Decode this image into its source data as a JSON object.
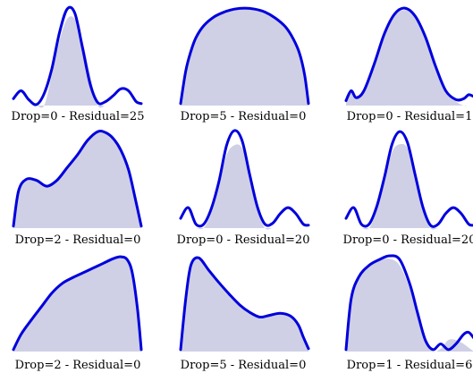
{
  "colors": {
    "curve": "#0000dd",
    "fill": "#cfd0e6"
  },
  "chart_data": [
    {
      "type": "area",
      "caption": "Drop=0 - Residual=25",
      "x": [
        0,
        0.06,
        0.12,
        0.18,
        0.24,
        0.3,
        0.36,
        0.42,
        0.48,
        0.54,
        0.6,
        0.66,
        0.72,
        0.78,
        0.84,
        0.9,
        0.96,
        1
      ],
      "values": [
        0.07,
        0.15,
        0.06,
        0.01,
        0.12,
        0.37,
        0.74,
        0.98,
        0.94,
        0.59,
        0.22,
        0.03,
        0.04,
        0.1,
        0.17,
        0.15,
        0.04,
        0.02
      ],
      "residual": [
        0,
        0,
        0,
        0,
        0,
        0.31,
        0.66,
        0.88,
        0.88,
        0.66,
        0.31,
        0,
        0,
        0,
        0,
        0,
        0,
        0
      ]
    },
    {
      "type": "area",
      "caption": "Drop=5 - Residual=0",
      "x": [
        0,
        0.04,
        0.08,
        0.12,
        0.18,
        0.26,
        0.34,
        0.42,
        0.5,
        0.58,
        0.66,
        0.74,
        0.82,
        0.88,
        0.93,
        0.97,
        1
      ],
      "values": [
        0.02,
        0.35,
        0.55,
        0.69,
        0.81,
        0.9,
        0.95,
        0.98,
        0.99,
        0.98,
        0.95,
        0.89,
        0.8,
        0.68,
        0.53,
        0.31,
        0.02
      ],
      "residual": [
        0.02,
        0.35,
        0.55,
        0.69,
        0.81,
        0.9,
        0.95,
        0.98,
        0.99,
        0.98,
        0.95,
        0.89,
        0.8,
        0.68,
        0.53,
        0.31,
        0.02
      ]
    },
    {
      "type": "area",
      "caption": "Drop=0 - Residual=1",
      "x": [
        0,
        0.04,
        0.08,
        0.14,
        0.22,
        0.3,
        0.38,
        0.46,
        0.54,
        0.62,
        0.7,
        0.78,
        0.86,
        0.92,
        0.96,
        1
      ],
      "values": [
        0.05,
        0.15,
        0.08,
        0.15,
        0.42,
        0.73,
        0.93,
        0.99,
        0.91,
        0.7,
        0.4,
        0.15,
        0.06,
        0.07,
        0.11,
        0.09
      ],
      "residual": [
        0.04,
        0.14,
        0.07,
        0.14,
        0.4,
        0.71,
        0.91,
        0.97,
        0.89,
        0.68,
        0.38,
        0.13,
        0.04,
        0,
        0,
        0
      ]
    },
    {
      "type": "area",
      "caption": "Drop=2 - Residual=0",
      "x": [
        0,
        0.04,
        0.1,
        0.18,
        0.26,
        0.34,
        0.42,
        0.5,
        0.58,
        0.66,
        0.72,
        0.78,
        0.84,
        0.9,
        0.95,
        1
      ],
      "values": [
        0.02,
        0.38,
        0.5,
        0.49,
        0.43,
        0.49,
        0.62,
        0.75,
        0.9,
        0.99,
        0.98,
        0.92,
        0.8,
        0.6,
        0.32,
        0.02
      ],
      "residual": [
        0.02,
        0.38,
        0.5,
        0.49,
        0.43,
        0.49,
        0.62,
        0.75,
        0.9,
        0.99,
        0.98,
        0.92,
        0.8,
        0.6,
        0.32,
        0.02
      ]
    },
    {
      "type": "area",
      "caption": "Drop=0 - Residual=20",
      "x": [
        0,
        0.06,
        0.12,
        0.18,
        0.24,
        0.3,
        0.36,
        0.42,
        0.48,
        0.54,
        0.6,
        0.66,
        0.72,
        0.78,
        0.84,
        0.9,
        0.96,
        1
      ],
      "values": [
        0.1,
        0.21,
        0.04,
        0.04,
        0.2,
        0.48,
        0.85,
        1.0,
        0.9,
        0.55,
        0.22,
        0.04,
        0.05,
        0.15,
        0.21,
        0.15,
        0.04,
        0.03
      ],
      "residual": [
        0,
        0,
        0,
        0,
        0.16,
        0.44,
        0.75,
        0.85,
        0.82,
        0.55,
        0.2,
        0,
        0,
        0,
        0,
        0,
        0,
        0
      ]
    },
    {
      "type": "area",
      "caption": "Drop=0 - Residual=20",
      "x": [
        0,
        0.06,
        0.12,
        0.18,
        0.24,
        0.3,
        0.36,
        0.42,
        0.48,
        0.54,
        0.6,
        0.66,
        0.72,
        0.78,
        0.84,
        0.9,
        0.96,
        1
      ],
      "values": [
        0.1,
        0.21,
        0.04,
        0.04,
        0.22,
        0.52,
        0.86,
        0.99,
        0.88,
        0.55,
        0.22,
        0.03,
        0.04,
        0.15,
        0.21,
        0.15,
        0.04,
        0.03
      ],
      "residual": [
        0,
        0,
        0,
        0,
        0.18,
        0.47,
        0.78,
        0.86,
        0.82,
        0.55,
        0.2,
        0,
        0,
        0,
        0,
        0,
        0,
        0
      ]
    },
    {
      "type": "area",
      "caption": "Drop=2 - Residual=0",
      "x": [
        0,
        0.06,
        0.14,
        0.22,
        0.3,
        0.38,
        0.46,
        0.54,
        0.62,
        0.7,
        0.78,
        0.84,
        0.89,
        0.93,
        0.97,
        1
      ],
      "values": [
        0.02,
        0.18,
        0.33,
        0.47,
        0.61,
        0.71,
        0.77,
        0.82,
        0.87,
        0.92,
        0.97,
        0.99,
        0.96,
        0.82,
        0.45,
        0.02
      ],
      "residual": [
        0.02,
        0.18,
        0.33,
        0.47,
        0.61,
        0.71,
        0.77,
        0.82,
        0.87,
        0.92,
        0.97,
        0.99,
        0.96,
        0.82,
        0.45,
        0.02
      ]
    },
    {
      "type": "area",
      "caption": "Drop=5 - Residual=0",
      "x": [
        0,
        0.04,
        0.08,
        0.14,
        0.22,
        0.3,
        0.38,
        0.46,
        0.54,
        0.62,
        0.7,
        0.78,
        0.86,
        0.92,
        0.96,
        1
      ],
      "values": [
        0.02,
        0.55,
        0.9,
        0.98,
        0.85,
        0.72,
        0.6,
        0.49,
        0.41,
        0.36,
        0.38,
        0.4,
        0.37,
        0.28,
        0.15,
        0.03
      ],
      "residual": [
        0.02,
        0.55,
        0.9,
        0.98,
        0.85,
        0.72,
        0.6,
        0.49,
        0.41,
        0.36,
        0.38,
        0.4,
        0.37,
        0.28,
        0.15,
        0.03
      ]
    },
    {
      "type": "area",
      "caption": "Drop=1 - Residual=6",
      "x": [
        0,
        0.04,
        0.1,
        0.18,
        0.26,
        0.34,
        0.42,
        0.5,
        0.56,
        0.62,
        0.68,
        0.74,
        0.8,
        0.86,
        0.92,
        0.96,
        1
      ],
      "values": [
        0.02,
        0.55,
        0.78,
        0.9,
        0.96,
        1.0,
        0.96,
        0.7,
        0.4,
        0.12,
        0.02,
        0.08,
        0.02,
        0.08,
        0.18,
        0.2,
        0.14
      ],
      "residual": [
        0.02,
        0.55,
        0.78,
        0.9,
        0.95,
        0.97,
        0.9,
        0.65,
        0.37,
        0.1,
        0,
        0.03,
        0.12,
        0.12,
        0.08,
        0.04,
        0
      ]
    }
  ]
}
